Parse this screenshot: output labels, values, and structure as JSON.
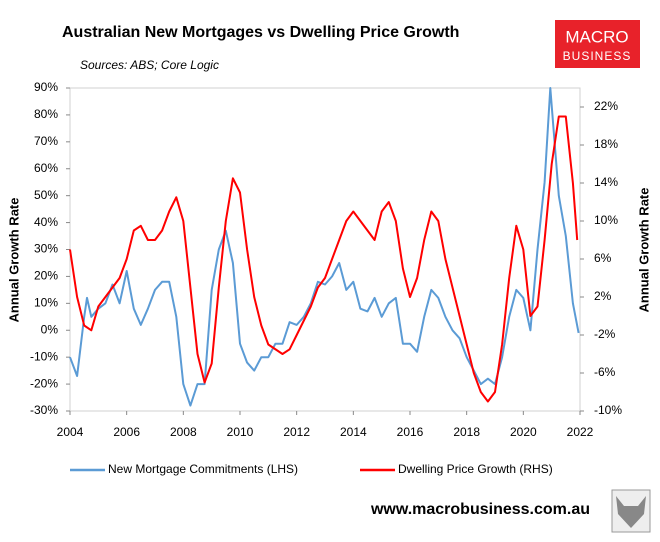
{
  "chart_data": {
    "type": "line",
    "title": "Australian New Mortgages vs Dwelling Price Growth",
    "subtitle": "Sources: ABS; Core Logic",
    "ylabel": "Annual Growth Rate",
    "y2label": "Annual Growth Rate",
    "brand": {
      "line1": "MACRO",
      "line2": "BUSINESS"
    },
    "footer": "www.macrobusiness.com.au",
    "xlim": [
      2004,
      2022
    ],
    "xticks": [
      2004,
      2006,
      2008,
      2010,
      2012,
      2014,
      2016,
      2018,
      2020,
      2022
    ],
    "ylim": [
      -30,
      90
    ],
    "yticks": [
      {
        "value": -30,
        "label": "-30%"
      },
      {
        "value": -20,
        "label": "-20%"
      },
      {
        "value": -10,
        "label": "-10%"
      },
      {
        "value": 0,
        "label": "0%"
      },
      {
        "value": 10,
        "label": "10%"
      },
      {
        "value": 20,
        "label": "20%"
      },
      {
        "value": 30,
        "label": "30%"
      },
      {
        "value": 40,
        "label": "40%"
      },
      {
        "value": 50,
        "label": "50%"
      },
      {
        "value": 60,
        "label": "60%"
      },
      {
        "value": 70,
        "label": "70%"
      },
      {
        "value": 80,
        "label": "80%"
      },
      {
        "value": 90,
        "label": "90%"
      }
    ],
    "y2lim": [
      -10,
      24
    ],
    "y2ticks": [
      {
        "value": -10,
        "label": "-10%"
      },
      {
        "value": -6,
        "label": "-6%"
      },
      {
        "value": -2,
        "label": "-2%"
      },
      {
        "value": 2,
        "label": "2%"
      },
      {
        "value": 6,
        "label": "6%"
      },
      {
        "value": 10,
        "label": "10%"
      },
      {
        "value": 14,
        "label": "14%"
      },
      {
        "value": 18,
        "label": "18%"
      },
      {
        "value": 22,
        "label": "22%"
      }
    ],
    "legend": "bottom",
    "series": [
      {
        "name": "New Mortgage Commitments (LHS)",
        "color": "#5b9bd5",
        "axis": "y",
        "x": [
          2004.0,
          2004.25,
          2004.5,
          2004.6,
          2004.75,
          2005.0,
          2005.25,
          2005.5,
          2005.75,
          2006.0,
          2006.25,
          2006.5,
          2006.75,
          2007.0,
          2007.25,
          2007.5,
          2007.75,
          2008.0,
          2008.25,
          2008.5,
          2008.75,
          2009.0,
          2009.25,
          2009.5,
          2009.75,
          2010.0,
          2010.25,
          2010.5,
          2010.75,
          2011.0,
          2011.25,
          2011.5,
          2011.75,
          2012.0,
          2012.25,
          2012.5,
          2012.75,
          2013.0,
          2013.25,
          2013.5,
          2013.75,
          2014.0,
          2014.25,
          2014.5,
          2014.75,
          2015.0,
          2015.25,
          2015.5,
          2015.75,
          2016.0,
          2016.25,
          2016.5,
          2016.75,
          2017.0,
          2017.25,
          2017.5,
          2017.75,
          2018.0,
          2018.25,
          2018.5,
          2018.75,
          2019.0,
          2019.25,
          2019.5,
          2019.75,
          2020.0,
          2020.25,
          2020.5,
          2020.75,
          2020.95,
          2021.25,
          2021.5,
          2021.75,
          2021.95
        ],
        "values": [
          -10,
          -17,
          5,
          12,
          5,
          8,
          10,
          17,
          10,
          22,
          8,
          2,
          8,
          15,
          18,
          18,
          5,
          -20,
          -28,
          -20,
          -20,
          15,
          30,
          37,
          25,
          -5,
          -12,
          -15,
          -10,
          -10,
          -5,
          -5,
          3,
          2,
          5,
          10,
          18,
          17,
          20,
          25,
          15,
          18,
          8,
          7,
          12,
          5,
          10,
          12,
          -5,
          -5,
          -8,
          5,
          15,
          12,
          5,
          0,
          -3,
          -10,
          -15,
          -20,
          -18,
          -20,
          -10,
          5,
          15,
          12,
          0,
          30,
          55,
          90,
          50,
          35,
          10,
          -1
        ]
      },
      {
        "name": "Dwelling Price Growth (RHS)",
        "color": "#ff0000",
        "axis": "y2",
        "x": [
          2004.0,
          2004.25,
          2004.5,
          2004.75,
          2005.0,
          2005.5,
          2005.75,
          2006.0,
          2006.25,
          2006.5,
          2006.75,
          2007.0,
          2007.25,
          2007.5,
          2007.75,
          2008.0,
          2008.25,
          2008.5,
          2008.75,
          2009.0,
          2009.25,
          2009.5,
          2009.75,
          2010.0,
          2010.25,
          2010.5,
          2010.75,
          2011.0,
          2011.5,
          2011.75,
          2012.0,
          2012.5,
          2012.75,
          2013.0,
          2013.25,
          2013.5,
          2013.75,
          2014.0,
          2014.25,
          2014.5,
          2014.75,
          2015.0,
          2015.25,
          2015.5,
          2015.75,
          2016.0,
          2016.25,
          2016.5,
          2016.75,
          2017.0,
          2017.25,
          2017.5,
          2017.75,
          2018.0,
          2018.25,
          2018.5,
          2018.75,
          2019.0,
          2019.25,
          2019.5,
          2019.75,
          2020.0,
          2020.25,
          2020.5,
          2020.75,
          2021.0,
          2021.25,
          2021.5,
          2021.75,
          2021.9
        ],
        "values": [
          7,
          2,
          -1,
          -1.5,
          1,
          3,
          4,
          6,
          9,
          9.5,
          8,
          8,
          9,
          11,
          12.5,
          10,
          3,
          -4,
          -7,
          -5,
          3,
          10,
          14.5,
          13,
          7,
          2,
          -1,
          -3,
          -4,
          -3.5,
          -2,
          1,
          3,
          4,
          6,
          8,
          10,
          11,
          10,
          9,
          8,
          11,
          12,
          10,
          5,
          2,
          4,
          8,
          11,
          10,
          6,
          3,
          0,
          -3,
          -6,
          -8,
          -9,
          -8,
          -3,
          4,
          9.5,
          7,
          0,
          1,
          8,
          16,
          21,
          21,
          14,
          8
        ]
      }
    ]
  }
}
